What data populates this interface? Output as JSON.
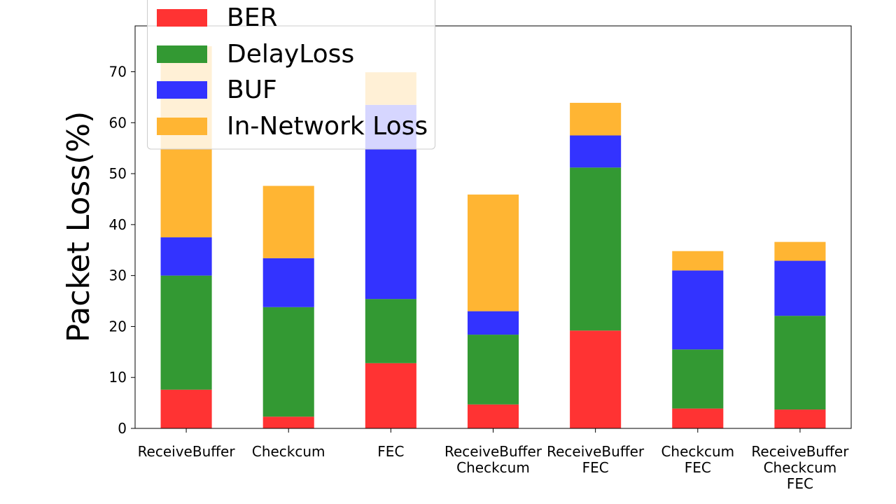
{
  "chart_data": {
    "type": "bar",
    "stacked": true,
    "ylabel": "Packet Loss(%)",
    "ylim": [
      0,
      79
    ],
    "yticks": [
      "0",
      "10",
      "20",
      "30",
      "40",
      "50",
      "60",
      "70"
    ],
    "categories": [
      [
        "ReceiveBuffer"
      ],
      [
        "Checkcum"
      ],
      [
        "FEC"
      ],
      [
        "ReceiveBuffer",
        "Checkcum"
      ],
      [
        "ReceiveBuffer",
        "FEC"
      ],
      [
        "Checkcum",
        "FEC"
      ],
      [
        "ReceiveBuffer",
        "Checkcum",
        "FEC"
      ]
    ],
    "series": [
      {
        "name": "BER",
        "color": "#ff3333",
        "values": [
          7.6,
          2.3,
          12.8,
          4.7,
          19.2,
          3.9,
          3.7
        ]
      },
      {
        "name": "DelayLoss",
        "color": "#339933",
        "values": [
          22.4,
          21.5,
          12.6,
          13.7,
          32.0,
          11.6,
          18.4
        ]
      },
      {
        "name": "BUF",
        "color": "#3333ff",
        "values": [
          7.5,
          9.6,
          38.1,
          4.6,
          6.3,
          15.5,
          10.8
        ]
      },
      {
        "name": "In-Network Loss",
        "color": "#ffb533",
        "values": [
          37.5,
          14.2,
          6.4,
          22.9,
          6.4,
          3.8,
          3.7
        ]
      }
    ],
    "legend_position": "top-left",
    "grid": false
  }
}
